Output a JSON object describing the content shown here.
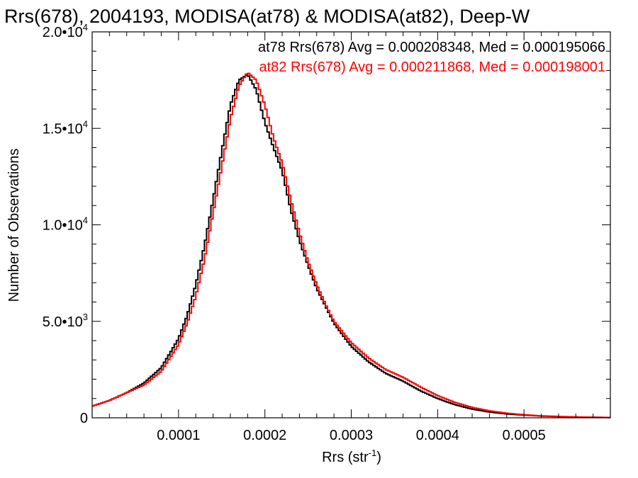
{
  "chart_data": {
    "type": "line",
    "title": "Rrs(678), 2004193, MODISA(at78) & MODISA(at82), Deep-W",
    "xlabel": "Rrs (str",
    "xlabel_sup": "-1",
    "xlabel_close": ")",
    "ylabel": "Number of Observations",
    "xlim": [
      0.0,
      0.0006
    ],
    "ylim": [
      0,
      20000
    ],
    "x_ticks": [
      {
        "value": 0.0001,
        "label": "0.0001"
      },
      {
        "value": 0.0002,
        "label": "0.0002"
      },
      {
        "value": 0.0003,
        "label": "0.0003"
      },
      {
        "value": 0.0004,
        "label": "0.0004"
      },
      {
        "value": 0.0005,
        "label": "0.0005"
      }
    ],
    "y_ticks": [
      {
        "value": 0,
        "mant": "0",
        "exp": ""
      },
      {
        "value": 5000,
        "mant": "5.0•10",
        "exp": "3"
      },
      {
        "value": 10000,
        "mant": "1.0•10",
        "exp": "4"
      },
      {
        "value": 15000,
        "mant": "1.5•10",
        "exp": "4"
      },
      {
        "value": 20000,
        "mant": "2.0•10",
        "exp": "4"
      }
    ],
    "grid": false,
    "annotations": [
      {
        "text": "at78 Rrs(678) Avg = 0.000208348, Med = 0.000195066",
        "color": "#000000"
      },
      {
        "text": "at82 Rrs(678) Avg = 0.000211868, Med = 0.000198001",
        "color": "#ff0000"
      }
    ],
    "series": [
      {
        "color": "#000000",
        "x": [
          0.0,
          2e-05,
          4e-05,
          6e-05,
          8e-05,
          0.0001,
          0.00011,
          0.00012,
          0.00013,
          0.00014,
          0.00015,
          0.00016,
          0.00017,
          0.00018,
          0.00019,
          0.0002,
          0.00021,
          0.00022,
          0.00023,
          0.00024,
          0.00025,
          0.00026,
          0.00027,
          0.00028,
          0.0003,
          0.00032,
          0.00034,
          0.00036,
          0.00038,
          0.0004,
          0.00042,
          0.00044,
          0.00046,
          0.00048,
          0.0005,
          0.00052,
          0.00054,
          0.00056,
          0.00058,
          0.0006
        ],
        "y": [
          600,
          900,
          1300,
          1800,
          2600,
          4100,
          5300,
          6900,
          8900,
          11300,
          13800,
          16200,
          17500,
          17800,
          17000,
          15300,
          14000,
          12800,
          10800,
          9200,
          7900,
          6700,
          5800,
          4900,
          3700,
          2900,
          2300,
          1900,
          1400,
          1000,
          680,
          450,
          300,
          200,
          140,
          90,
          60,
          40,
          25,
          15
        ]
      },
      {
        "color": "#ff0000",
        "x": [
          0.0,
          2e-05,
          4e-05,
          6e-05,
          8e-05,
          0.0001,
          0.00011,
          0.00012,
          0.00013,
          0.00014,
          0.00015,
          0.00016,
          0.00017,
          0.00018,
          0.00019,
          0.0002,
          0.00021,
          0.00022,
          0.00023,
          0.00024,
          0.00025,
          0.00026,
          0.00027,
          0.00028,
          0.0003,
          0.00032,
          0.00034,
          0.00036,
          0.00038,
          0.0004,
          0.00042,
          0.00044,
          0.00046,
          0.00048,
          0.0005,
          0.00052,
          0.00054,
          0.00056,
          0.00058,
          0.0006
        ],
        "y": [
          600,
          900,
          1300,
          1700,
          2400,
          3800,
          4900,
          6300,
          8200,
          10600,
          13000,
          15500,
          17200,
          17900,
          17500,
          16200,
          14500,
          13200,
          11300,
          9600,
          8100,
          6900,
          5900,
          5000,
          3900,
          3100,
          2500,
          2100,
          1600,
          1150,
          800,
          540,
          360,
          240,
          160,
          100,
          70,
          45,
          28,
          18
        ]
      }
    ]
  }
}
